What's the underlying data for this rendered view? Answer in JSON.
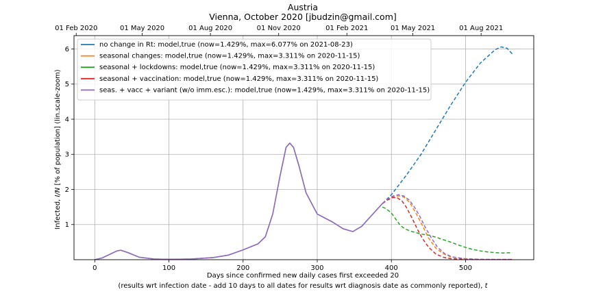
{
  "chart_data": {
    "type": "line",
    "title": "Austria",
    "subtitle": "Vienna, October 2020 [jbudzin@gmail.com]",
    "xlabel": "Days since confirmed new daily cases first exceeded 20",
    "xlabel2_prefix": "(results wrt infection date - add 10 days to all dates for results wrt diagnosis date as commonly reported), ",
    "xlabel2_var": "t",
    "ylabel_prefix": "Infected, ",
    "ylabel_var": "I/N",
    "ylabel_suffix": " [% of population] (lin.scale-zoom)",
    "xlim": [
      -28,
      592
    ],
    "ylim": [
      0,
      6.38
    ],
    "x_ticks": [
      0,
      100,
      200,
      300,
      400,
      500
    ],
    "x_tick_labels": [
      "0",
      "100",
      "200",
      "300",
      "400",
      "500"
    ],
    "y_ticks": [
      1,
      2,
      3,
      4,
      5,
      6
    ],
    "y_tick_labels": [
      "1",
      "2",
      "3",
      "4",
      "5",
      "6"
    ],
    "top_axis": {
      "ticks": [
        -25,
        64,
        156,
        248,
        340,
        429,
        521
      ],
      "labels": [
        "01 Feb 2020",
        "01 May 2020",
        "01 Aug 2020",
        "01 Nov 2020",
        "01 Feb 2021",
        "01 May 2021",
        "01 Aug 2021"
      ]
    },
    "grid": true,
    "legend_position": "top-left",
    "series": [
      {
        "name": "no change in Rt: model,true (now=1.429%, max=6.077% on 2021-08-23)",
        "color": "#1f77b4",
        "x": [
          0,
          10,
          20,
          30,
          35,
          45,
          60,
          80,
          100,
          130,
          160,
          180,
          200,
          220,
          230,
          240,
          250,
          258,
          263,
          268,
          275,
          285,
          300,
          320,
          335,
          348,
          360,
          375,
          388,
          400,
          420,
          440,
          460,
          480,
          500,
          520,
          540,
          548,
          556,
          563
        ],
        "y": [
          0,
          0.05,
          0.15,
          0.25,
          0.27,
          0.2,
          0.07,
          0.02,
          0.01,
          0.02,
          0.06,
          0.13,
          0.28,
          0.45,
          0.65,
          1.3,
          2.4,
          3.2,
          3.32,
          3.2,
          2.7,
          1.9,
          1.3,
          1.08,
          0.88,
          0.8,
          0.95,
          1.3,
          1.6,
          1.85,
          2.4,
          3.0,
          3.7,
          4.4,
          5.05,
          5.6,
          5.98,
          6.06,
          6.02,
          5.86
        ],
        "solid_until": 388
      },
      {
        "name": "seasonal changes: model,true (now=1.429%, max=3.311% on 2020-11-15)",
        "color": "#ff7f0e",
        "x": [
          388,
          395,
          403,
          411,
          418,
          425,
          433,
          440,
          450,
          460,
          470,
          480,
          500,
          520,
          540,
          563
        ],
        "y": [
          1.6,
          1.72,
          1.8,
          1.82,
          1.77,
          1.62,
          1.33,
          1.05,
          0.62,
          0.33,
          0.17,
          0.08,
          0.03,
          0.01,
          0.01,
          0.01
        ]
      },
      {
        "name": "seasonal + lockdowns: model,true (now=1.429%, max=3.311% on 2020-11-15)",
        "color": "#2ca02c",
        "x": [
          388,
          393,
          400,
          406,
          412,
          418,
          425,
          433,
          440,
          450,
          460,
          470,
          480,
          490,
          500,
          510,
          520,
          530,
          540,
          550,
          563
        ],
        "y": [
          1.5,
          1.45,
          1.33,
          1.15,
          0.98,
          0.88,
          0.82,
          0.77,
          0.73,
          0.7,
          0.64,
          0.57,
          0.5,
          0.42,
          0.35,
          0.29,
          0.25,
          0.22,
          0.2,
          0.19,
          0.2
        ]
      },
      {
        "name": "seasonal + vaccination: model,true (now=1.429%, max=3.311% on 2020-11-15)",
        "color": "#d62728",
        "x": [
          388,
          395,
          402,
          408,
          414,
          420,
          428,
          435,
          442,
          450,
          460,
          470,
          480,
          500,
          520,
          540,
          563
        ],
        "y": [
          1.6,
          1.7,
          1.77,
          1.76,
          1.68,
          1.5,
          1.18,
          0.87,
          0.6,
          0.36,
          0.16,
          0.07,
          0.03,
          0.01,
          0.005,
          0.005,
          0.005
        ]
      },
      {
        "name": "seas. + vacc + variant (w/o imm.esc.): model,true (now=1.429%, max=3.311% on 2020-11-15)",
        "color": "#9467bd",
        "x": [
          388,
          395,
          403,
          410,
          417,
          424,
          431,
          438,
          445,
          453,
          462,
          472,
          482,
          500,
          520,
          540,
          563
        ],
        "y": [
          1.6,
          1.73,
          1.82,
          1.85,
          1.81,
          1.7,
          1.5,
          1.25,
          0.95,
          0.65,
          0.36,
          0.17,
          0.08,
          0.02,
          0.01,
          0.005,
          0.005
        ]
      }
    ]
  }
}
